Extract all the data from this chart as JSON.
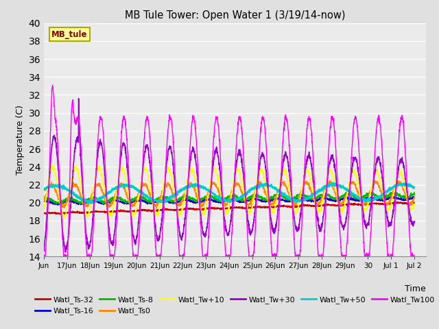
{
  "title": "MB Tule Tower: Open Water 1 (3/19/14-now)",
  "ylabel": "Temperature (C)",
  "xlabel": "Time",
  "ylim": [
    14,
    40
  ],
  "yticks": [
    14,
    16,
    18,
    20,
    22,
    24,
    26,
    28,
    30,
    32,
    34,
    36,
    38,
    40
  ],
  "background_color": "#e0e0e0",
  "plot_bg_color": "#ebebeb",
  "grid_color": "#ffffff",
  "series": {
    "Watl_Ts-32": {
      "color": "#cc0000",
      "lw": 1.2,
      "zorder": 3
    },
    "Watl_Ts-16": {
      "color": "#0000cc",
      "lw": 1.2,
      "zorder": 3
    },
    "Watl_Ts-8": {
      "color": "#00bb00",
      "lw": 1.2,
      "zorder": 3
    },
    "Watl_Ts0": {
      "color": "#ff8800",
      "lw": 1.2,
      "zorder": 3
    },
    "Watl_Tw+10": {
      "color": "#ffff00",
      "lw": 1.2,
      "zorder": 3
    },
    "Watl_Tw+30": {
      "color": "#9900cc",
      "lw": 1.2,
      "zorder": 3
    },
    "Watl_Tw+50": {
      "color": "#00cccc",
      "lw": 1.5,
      "zorder": 3
    },
    "Watl_Tw100": {
      "color": "#ff00ff",
      "lw": 1.0,
      "zorder": 4
    }
  },
  "xtick_labels": [
    "Jun 17",
    "Jun 18",
    "Jun 19",
    "Jun 20",
    "Jun 21",
    "Jun 22",
    "Jun 23",
    "Jun 24",
    "Jun 25",
    "Jun 26",
    "Jun 27",
    "Jun 28",
    "Jun 29",
    "Jun 30",
    "Jul 1",
    "Jul 2"
  ],
  "label_box_text": "MB_tule",
  "label_box_color": "#ffff99",
  "label_box_edge_color": "#aaaa00"
}
